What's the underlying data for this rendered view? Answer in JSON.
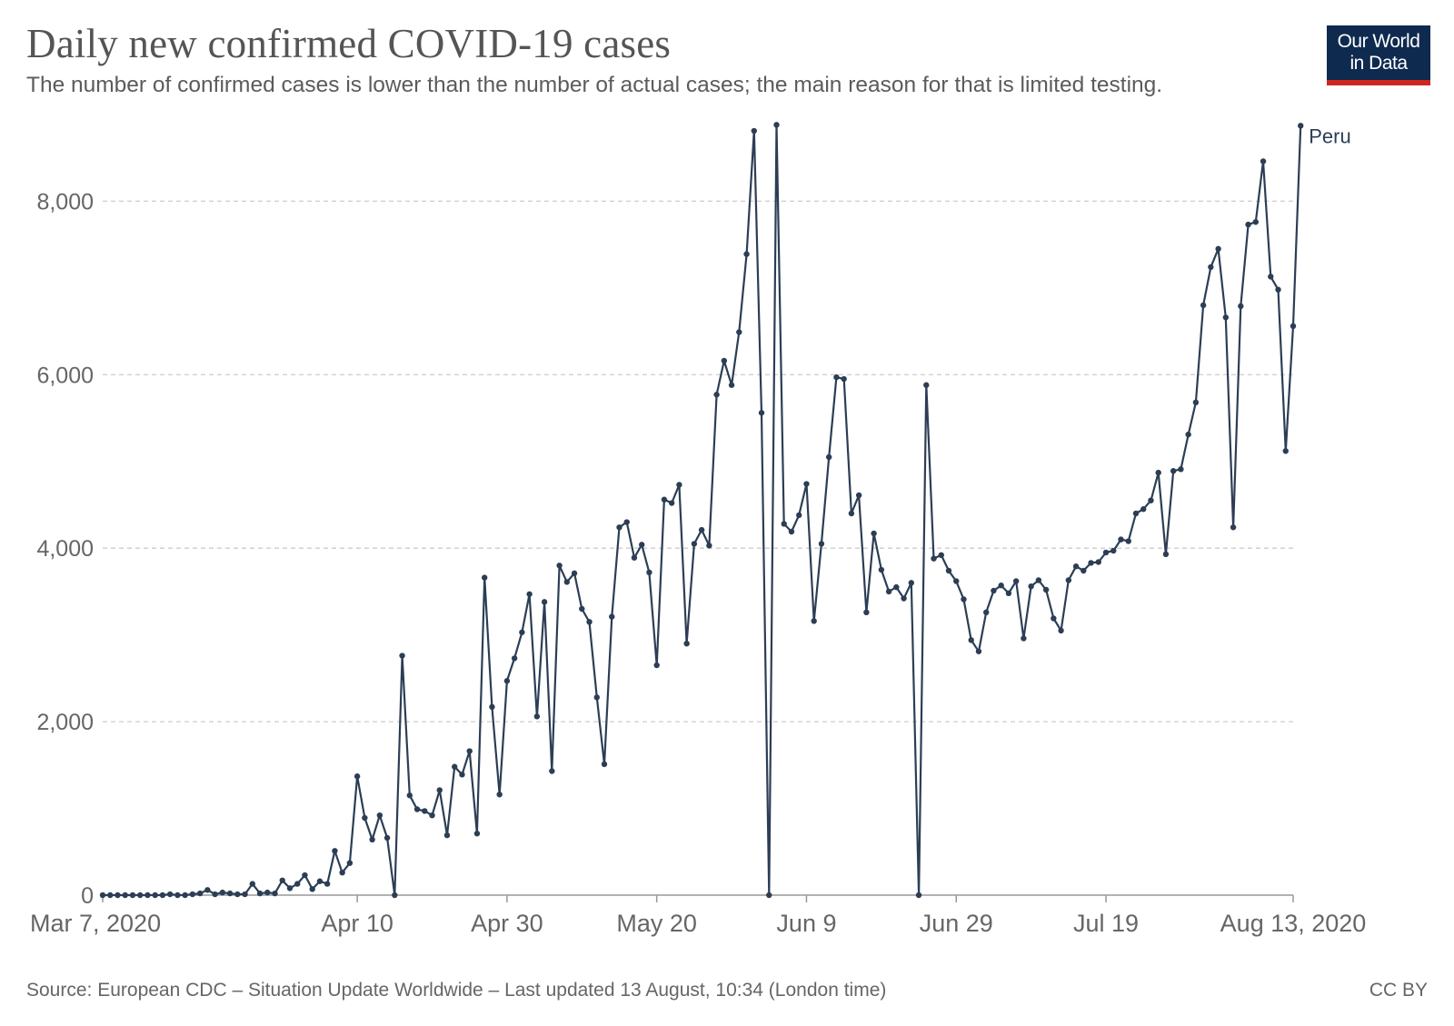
{
  "title": "Daily new confirmed COVID-19 cases",
  "subtitle": "The number of confirmed cases is lower than the number of actual cases; the main reason for that is limited testing.",
  "logo": {
    "line1": "Our World",
    "line2": "in Data",
    "bg_color": "#0f2a4f",
    "accent_color": "#ce261e"
  },
  "source": "Source: European CDC – Situation Update Worldwide – Last updated 13 August, 10:34 (London time)",
  "license": "CC BY",
  "chart_data": {
    "type": "line",
    "title": "Daily new confirmed COVID-19 cases",
    "xlabel": "",
    "ylabel": "",
    "ylim": [
      0,
      8800
    ],
    "yticks": [
      0,
      2000,
      4000,
      6000,
      8000
    ],
    "ytick_labels": [
      "0",
      "2,000",
      "4,000",
      "6,000",
      "8,000"
    ],
    "xticks": [
      {
        "day": 0,
        "label": "Mar 7, 2020"
      },
      {
        "day": 34,
        "label": "Apr 10"
      },
      {
        "day": 54,
        "label": "Apr 30"
      },
      {
        "day": 74,
        "label": "May 20"
      },
      {
        "day": 94,
        "label": "Jun 9"
      },
      {
        "day": 114,
        "label": "Jun 29"
      },
      {
        "day": 134,
        "label": "Jul 19"
      },
      {
        "day": 159,
        "label": "Aug 13, 2020"
      }
    ],
    "x_range": [
      0,
      159
    ],
    "grid": true,
    "line_color": "#2c3e55",
    "series": [
      {
        "name": "Peru",
        "values": [
          0,
          0,
          0,
          0,
          0,
          0,
          0,
          0,
          0,
          10,
          0,
          0,
          10,
          20,
          60,
          10,
          30,
          20,
          10,
          10,
          130,
          20,
          30,
          20,
          170,
          80,
          130,
          230,
          70,
          160,
          130,
          510,
          260,
          370,
          1370,
          890,
          640,
          920,
          660,
          0,
          2760,
          1150,
          990,
          970,
          920,
          1210,
          690,
          1480,
          1390,
          1660,
          710,
          3660,
          2170,
          1160,
          2470,
          2730,
          3030,
          3470,
          2060,
          3380,
          1430,
          3800,
          3610,
          3710,
          3300,
          3150,
          2280,
          1510,
          3210,
          4240,
          4300,
          3890,
          4040,
          3720,
          2650,
          4560,
          4520,
          4730,
          2900,
          4050,
          4210,
          4030,
          5770,
          6160,
          5880,
          6490,
          7390,
          8810,
          5560,
          0,
          8880,
          4280,
          4190,
          4380,
          4740,
          3160,
          4050,
          5050,
          5970,
          5950,
          4400,
          4610,
          3260,
          4170,
          3750,
          3500,
          3550,
          3420,
          3600,
          0,
          5880,
          3880,
          3920,
          3740,
          3620,
          3410,
          2940,
          2810,
          3260,
          3510,
          3570,
          3480,
          3620,
          2960,
          3560,
          3630,
          3520,
          3190,
          3050,
          3630,
          3790,
          3740,
          3830,
          3840,
          3950,
          3970,
          4100,
          4080,
          4400,
          4450,
          4550,
          4870,
          3930,
          4890,
          4910,
          5310,
          5680,
          6800,
          7240,
          7450,
          6660,
          4240,
          6790,
          7730,
          7760,
          8460,
          7130,
          6980,
          5120,
          6560,
          8870
        ]
      }
    ]
  }
}
